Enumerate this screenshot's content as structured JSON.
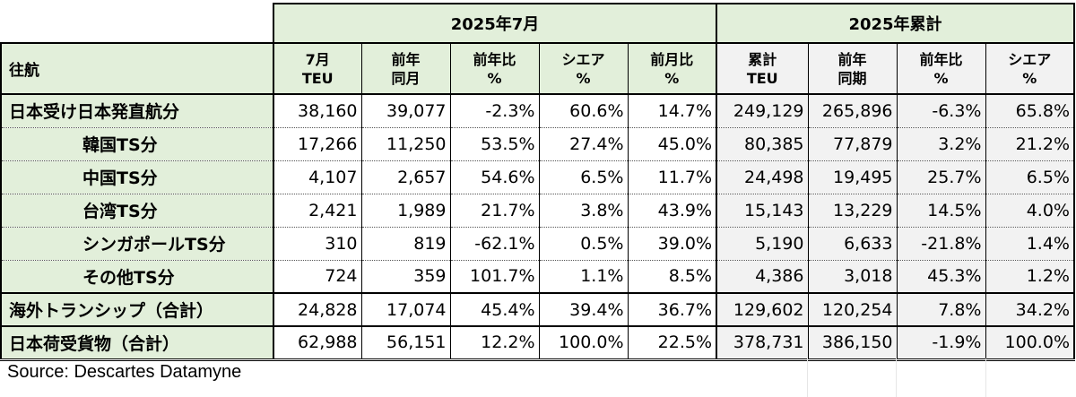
{
  "chart_data": {
    "type": "table",
    "corner_label": "往航",
    "groups": [
      {
        "label": "2025年7月"
      },
      {
        "label": "2025年累計"
      }
    ],
    "columns": [
      {
        "line1": "7月",
        "line2": "TEU"
      },
      {
        "line1": "前年",
        "line2": "同月"
      },
      {
        "line1": "前年比",
        "line2": "%"
      },
      {
        "line1": "シエア",
        "line2": "%"
      },
      {
        "line1": "前月比",
        "line2": "%"
      },
      {
        "line1": "累計",
        "line2": "TEU"
      },
      {
        "line1": "前年",
        "line2": "同期"
      },
      {
        "line1": "前年比",
        "line2": "%"
      },
      {
        "line1": "シエア",
        "line2": "%"
      }
    ],
    "rows": [
      {
        "label": "日本受け日本発直航分",
        "values": [
          "38,160",
          "39,077",
          "-2.3%",
          "60.6%",
          "14.7%",
          "249,129",
          "265,896",
          "-6.3%",
          "65.8%"
        ]
      },
      {
        "label": "韓国TS分",
        "values": [
          "17,266",
          "11,250",
          "53.5%",
          "27.4%",
          "45.0%",
          "80,385",
          "77,879",
          "3.2%",
          "21.2%"
        ]
      },
      {
        "label": "中国TS分",
        "values": [
          "4,107",
          "2,657",
          "54.6%",
          "6.5%",
          "11.7%",
          "24,498",
          "19,495",
          "25.7%",
          "6.5%"
        ]
      },
      {
        "label": "台湾TS分",
        "values": [
          "2,421",
          "1,989",
          "21.7%",
          "3.8%",
          "43.9%",
          "15,143",
          "13,229",
          "14.5%",
          "4.0%"
        ]
      },
      {
        "label": "シンガポールTS分",
        "values": [
          "310",
          "819",
          "-62.1%",
          "0.5%",
          "39.0%",
          "5,190",
          "6,633",
          "-21.8%",
          "1.4%"
        ]
      },
      {
        "label": "その他TS分",
        "values": [
          "724",
          "359",
          "101.7%",
          "1.1%",
          "8.5%",
          "4,386",
          "3,018",
          "45.3%",
          "1.2%"
        ]
      },
      {
        "label": "海外トランシップ（合計）",
        "values": [
          "24,828",
          "17,074",
          "45.4%",
          "39.4%",
          "36.7%",
          "129,602",
          "120,254",
          "7.8%",
          "34.2%"
        ]
      },
      {
        "label": "日本荷受貨物（合計）",
        "values": [
          "62,988",
          "56,151",
          "12.2%",
          "100.0%",
          "22.5%",
          "378,731",
          "386,150",
          "-1.9%",
          "100.0%"
        ]
      }
    ]
  },
  "source": "Source:  Descartes Datamyne"
}
